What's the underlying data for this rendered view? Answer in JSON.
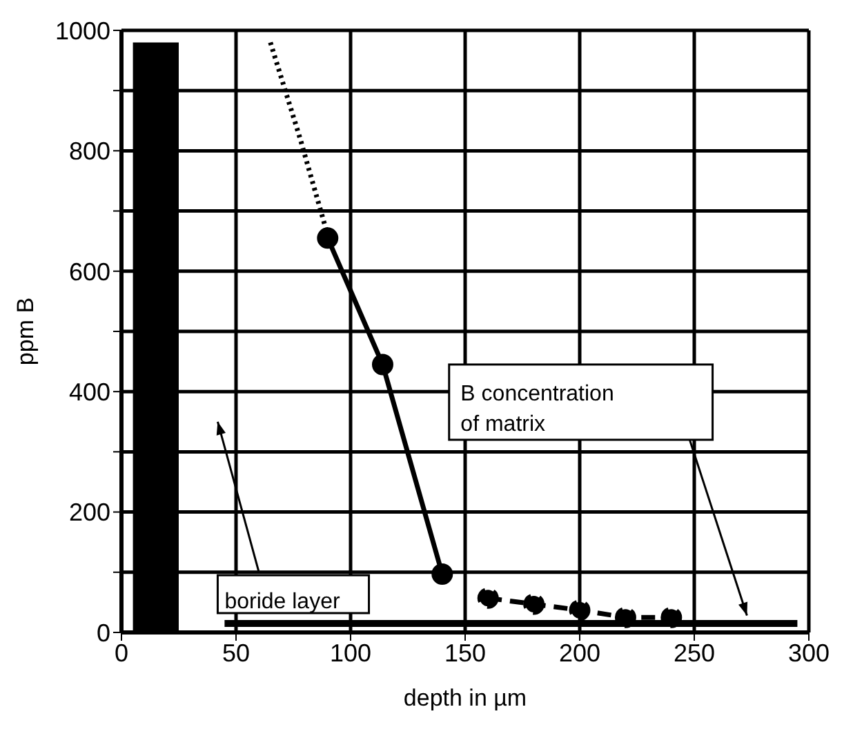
{
  "chart_data": {
    "type": "line",
    "xlabel": "depth in µm",
    "ylabel": "ppm B",
    "xlim": [
      0,
      300
    ],
    "xticks": [
      0,
      50,
      100,
      150,
      200,
      250,
      300
    ],
    "ylim": [
      0,
      1000
    ],
    "yticks": [
      0,
      {
        "value": 100,
        "label": null
      },
      200,
      {
        "value": 300,
        "label": null
      },
      400,
      {
        "value": 500,
        "label": null
      },
      600,
      {
        "value": 700,
        "label": null
      },
      800,
      {
        "value": 900,
        "label": null
      },
      1000
    ],
    "grid": true,
    "series": [
      {
        "color": "#000000",
        "line_style": "dotted",
        "marker": "none",
        "x": [
          65,
          78,
          90
        ],
        "values": [
          980,
          820,
          660
        ]
      },
      {
        "color": "#000000",
        "line_style": "solid",
        "marker": "circle",
        "x": [
          90,
          114,
          140
        ],
        "values": [
          655,
          445,
          97
        ]
      },
      {
        "color": "#000000",
        "line_style": "dashed",
        "marker": "circle",
        "x": [
          160,
          180,
          200,
          220,
          240
        ],
        "values": [
          57,
          47,
          37,
          25,
          25
        ]
      },
      {
        "color": "#000000",
        "line_style": "solid",
        "marker": "none",
        "x": [
          45,
          295
        ],
        "values": [
          15,
          15
        ]
      }
    ],
    "bands": [
      {
        "axis": "x",
        "from": 5,
        "to": 25,
        "color": "#000000"
      }
    ],
    "annotations": [
      "boride layer",
      "B concentration of matrix"
    ]
  }
}
